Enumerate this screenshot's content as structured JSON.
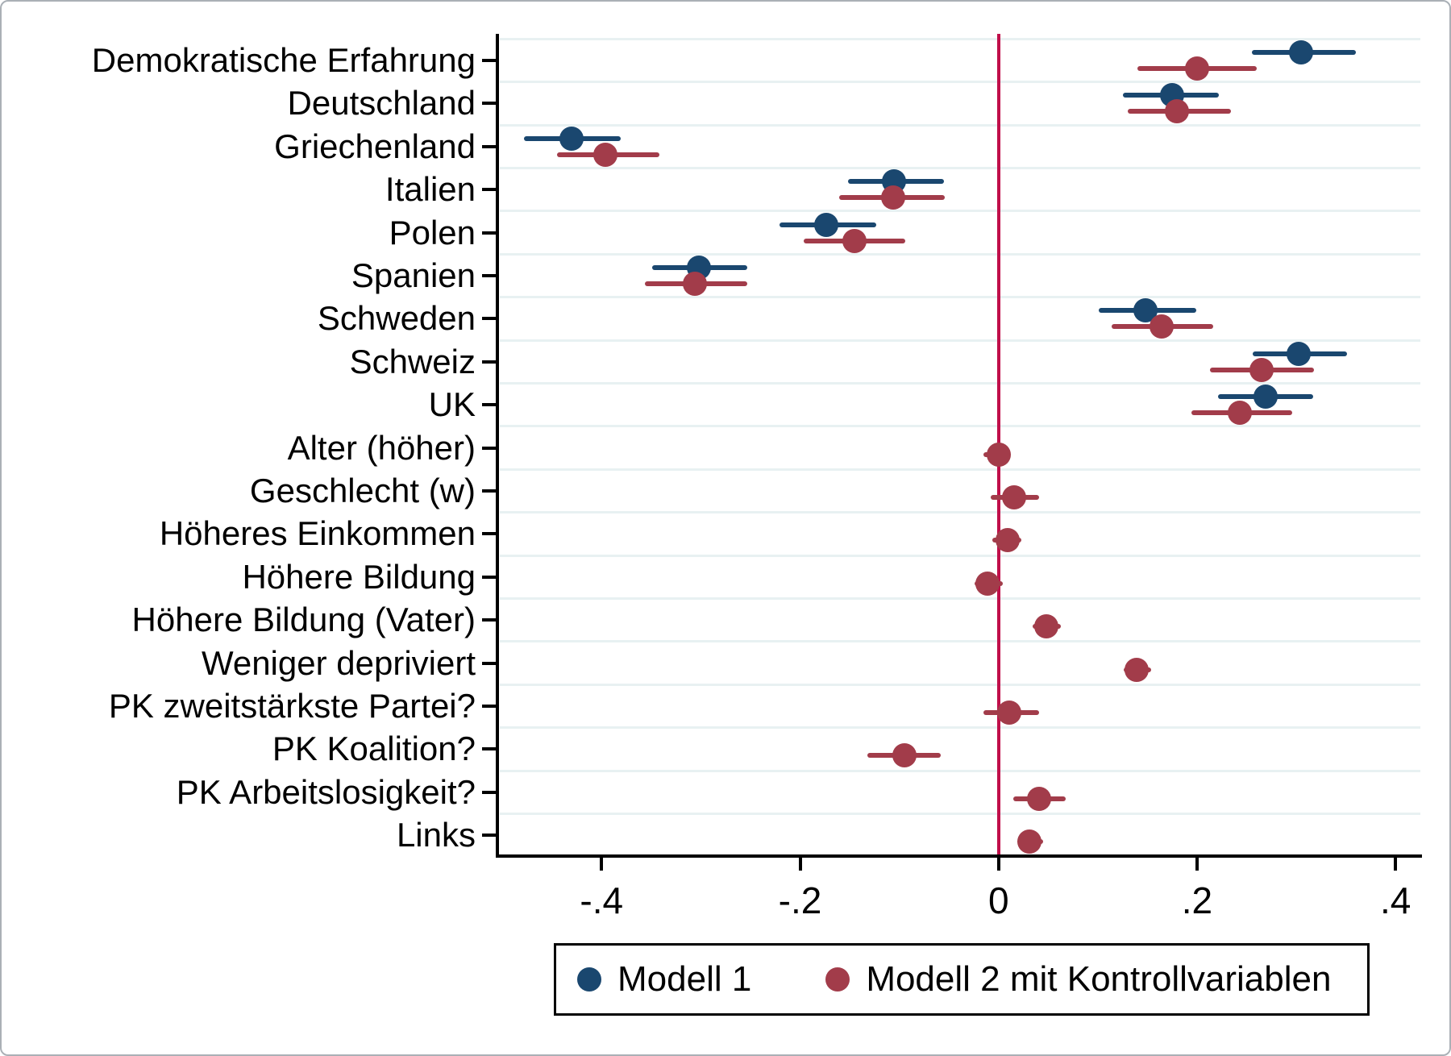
{
  "figure": {
    "background": "#ffffff",
    "border_color": "#aab0b6"
  },
  "colors": {
    "model1": "#1a476f",
    "model2": "#a23c4a",
    "zero_line": "#c00f4a",
    "gridline": "#e8f1f2",
    "axis": "#000000",
    "text": "#000000"
  },
  "legend": {
    "items": [
      {
        "label": "Modell 1",
        "color_key": "model1"
      },
      {
        "label": "Modell 2 mit Kontrollvariablen",
        "color_key": "model2"
      }
    ]
  },
  "chart_data": {
    "type": "scatter",
    "subtype": "coefficient-dot-and-whisker",
    "orientation": "horizontal",
    "title": "",
    "xlabel": "",
    "ylabel": "",
    "grid": "horizontal",
    "legend_position": "bottom-center",
    "zero_reference_line": 0,
    "xlim": [
      -0.505,
      0.425
    ],
    "xticks": [
      -0.4,
      -0.2,
      0,
      0.2,
      0.4
    ],
    "xtick_labels": [
      "-.4",
      "-.2",
      "0",
      ".2",
      ".4"
    ],
    "categories": [
      "Demokratische Erfahrung",
      "Deutschland",
      "Griechenland",
      "Italien",
      "Polen",
      "Spanien",
      "Schweden",
      "Schweiz",
      "UK",
      "Alter (höher)",
      "Geschlecht (w)",
      "Höheres Einkommen",
      "Höhere Bildung",
      "Höhere Bildung (Vater)",
      "Weniger depriviert",
      "PK zweitstärkste Partei?",
      "PK Koalition?",
      "PK Arbeitslosigkeit?",
      "Links"
    ],
    "series": [
      {
        "name": "Modell 1",
        "color": "#1a476f",
        "estimates": [
          0.305,
          0.175,
          -0.43,
          -0.105,
          -0.174,
          -0.302,
          0.148,
          0.302,
          0.269,
          null,
          null,
          null,
          null,
          null,
          null,
          null,
          null,
          null,
          null
        ],
        "ci_low": [
          0.255,
          0.125,
          -0.478,
          -0.152,
          -0.221,
          -0.349,
          0.101,
          0.256,
          0.221,
          null,
          null,
          null,
          null,
          null,
          null,
          null,
          null,
          null,
          null
        ],
        "ci_high": [
          0.36,
          0.222,
          -0.381,
          -0.055,
          -0.123,
          -0.253,
          0.199,
          0.351,
          0.317,
          null,
          null,
          null,
          null,
          null,
          null,
          null,
          null,
          null,
          null
        ]
      },
      {
        "name": "Modell 2 mit Kontrollvariablen",
        "color": "#a23c4a",
        "estimates": [
          0.2,
          0.18,
          -0.396,
          -0.106,
          -0.145,
          -0.306,
          0.164,
          0.265,
          0.243,
          0.0,
          0.016,
          0.009,
          -0.011,
          0.048,
          0.139,
          0.011,
          -0.095,
          0.041,
          0.031
        ],
        "ci_low": [
          0.14,
          0.13,
          -0.445,
          -0.161,
          -0.196,
          -0.356,
          0.114,
          0.213,
          0.194,
          -0.015,
          -0.008,
          -0.006,
          -0.024,
          0.034,
          0.126,
          -0.015,
          -0.132,
          0.015,
          0.019
        ],
        "ci_high": [
          0.26,
          0.234,
          -0.342,
          -0.054,
          -0.094,
          -0.253,
          0.216,
          0.318,
          0.296,
          0.011,
          0.041,
          0.023,
          0.004,
          0.063,
          0.154,
          0.041,
          -0.058,
          0.068,
          0.045
        ]
      }
    ]
  }
}
